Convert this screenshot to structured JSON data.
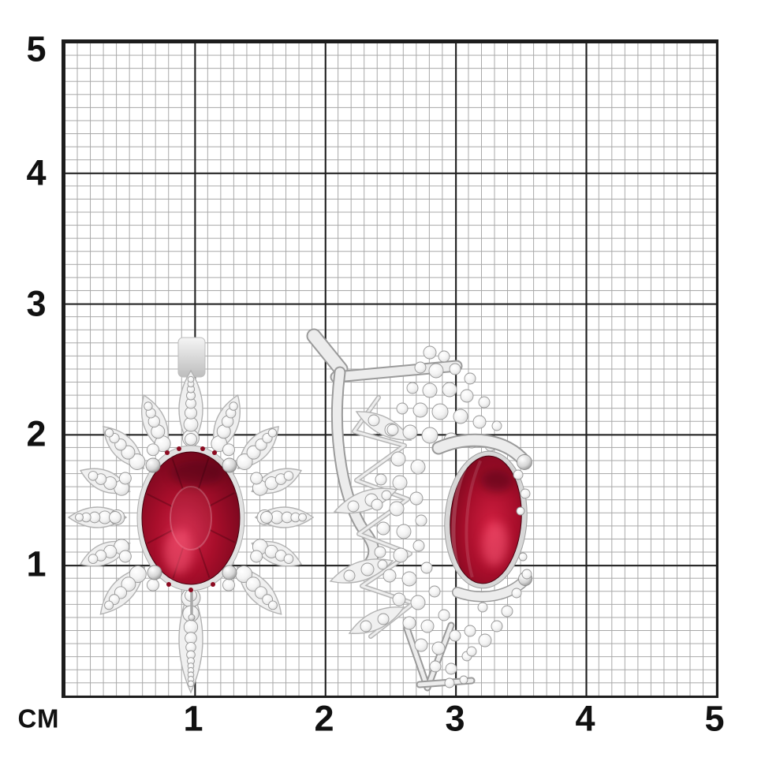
{
  "ruler": {
    "unit_label": "СМ",
    "x_labels": [
      "1",
      "2",
      "3",
      "4",
      "5"
    ],
    "y_labels": [
      "5",
      "4",
      "3",
      "2",
      "1"
    ],
    "cm_total": 5,
    "minor_divisions_per_cm": 10
  },
  "colors": {
    "background": "#ffffff",
    "grid_major": "#1d1d1d",
    "grid_minor": "#a7a7a7",
    "label_text": "#111111",
    "metal_light": "#f5f5f5",
    "metal_mid": "#d8d8d8",
    "metal_dark": "#9a9a9a",
    "metal_stroke": "#969696",
    "crystal": "#f3f3f3",
    "ruby_bright": "#d22447",
    "ruby_mid": "#a80e2b",
    "ruby_dark": "#540411",
    "ruby_highlight": "#ff5f7d"
  }
}
